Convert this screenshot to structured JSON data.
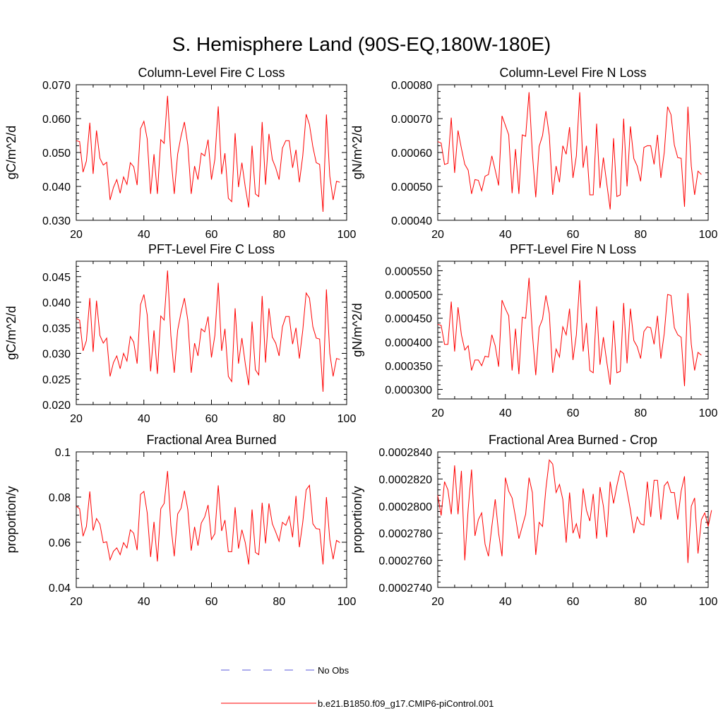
{
  "page_title": "S. Hemisphere Land (90S-EQ,180W-180E)",
  "colors": {
    "model_line": "#ff0000",
    "obs_line": "#5a5adb",
    "axis": "#000000"
  },
  "legend": [
    {
      "label": "No Obs",
      "style": "dashed",
      "color": "#5a5adb"
    },
    {
      "label": "b.e21.B1850.f09_g17.CMIP6-piControl.001",
      "style": "solid",
      "color": "#ff0000"
    }
  ],
  "chart_data": [
    {
      "type": "line",
      "title": "Column-Level Fire C Loss",
      "ylabel": "gC/m^2/d",
      "xlabel": "",
      "xlim": [
        20,
        100
      ],
      "xticks": [
        "20",
        "40",
        "60",
        "80",
        "100"
      ],
      "ylim": [
        0.03,
        0.07
      ],
      "yticks": [
        0.03,
        0.04,
        0.05,
        0.06,
        0.07
      ],
      "yticklabels": [
        "0.030",
        "0.040",
        "0.050",
        "0.060",
        "0.070"
      ],
      "series": [
        {
          "name": "b.e21.B1850.f09_g17.CMIP6-piControl.001",
          "x_start": 20,
          "values": [
            0.0535,
            0.0532,
            0.0442,
            0.0475,
            0.0588,
            0.0437,
            0.0565,
            0.0483,
            0.0463,
            0.0471,
            0.036,
            0.0397,
            0.042,
            0.038,
            0.0428,
            0.0406,
            0.047,
            0.0458,
            0.0404,
            0.057,
            0.0592,
            0.054,
            0.0378,
            0.0495,
            0.0378,
            0.0538,
            0.0527,
            0.0667,
            0.049,
            0.0378,
            0.0495,
            0.0548,
            0.059,
            0.0522,
            0.0378,
            0.046,
            0.042,
            0.0498,
            0.049,
            0.0538,
            0.042,
            0.048,
            0.0636,
            0.0436,
            0.0498,
            0.0365,
            0.0355,
            0.0557,
            0.0398,
            0.047,
            0.0398,
            0.0338,
            0.052,
            0.0378,
            0.037,
            0.059,
            0.0405,
            0.0555,
            0.048,
            0.0455,
            0.042,
            0.0513,
            0.0535,
            0.0535,
            0.0455,
            0.0508,
            0.0412,
            0.049,
            0.0613,
            0.0582,
            0.0517,
            0.047,
            0.0465,
            0.0325,
            0.0612,
            0.043,
            0.036,
            0.0415,
            0.0412
          ]
        }
      ]
    },
    {
      "type": "line",
      "title": "Column-Level Fire N Loss",
      "ylabel": "gN/m^2/d",
      "xlabel": "",
      "xlim": [
        20,
        100
      ],
      "xticks": [
        "20",
        "40",
        "60",
        "80",
        "100"
      ],
      "ylim": [
        0.0004,
        0.0008
      ],
      "yticks": [
        0.0004,
        0.0005,
        0.0006,
        0.0007,
        0.0008
      ],
      "yticklabels": [
        "0.00040",
        "0.00050",
        "0.00060",
        "0.00070",
        "0.00080"
      ],
      "series": [
        {
          "name": "b.e21.B1850.f09_g17.CMIP6-piControl.001",
          "x_start": 20,
          "values": [
            0.000632,
            0.000628,
            0.000565,
            0.000568,
            0.000703,
            0.00054,
            0.000665,
            0.000612,
            0.000565,
            0.000548,
            0.000478,
            0.00052,
            0.000518,
            0.000487,
            0.00053,
            0.000535,
            0.00059,
            0.000548,
            0.000503,
            0.000708,
            0.00068,
            0.000652,
            0.00048,
            0.00061,
            0.000478,
            0.000652,
            0.000648,
            0.000778,
            0.000598,
            0.000468,
            0.000618,
            0.00065,
            0.000722,
            0.00065,
            0.000475,
            0.00056,
            0.000512,
            0.00062,
            0.000595,
            0.000675,
            0.000525,
            0.00059,
            0.000778,
            0.000555,
            0.00062,
            0.000475,
            0.000475,
            0.000685,
            0.000495,
            0.000585,
            0.000508,
            0.000432,
            0.000642,
            0.00047,
            0.000475,
            0.0007,
            0.0005,
            0.000677,
            0.000582,
            0.00056,
            0.000515,
            0.000615,
            0.00062,
            0.00062,
            0.000565,
            0.000652,
            0.000525,
            0.0006,
            0.000735,
            0.000712,
            0.000622,
            0.000585,
            0.000583,
            0.00044,
            0.000735,
            0.00056,
            0.000475,
            0.000545,
            0.000535
          ]
        }
      ]
    },
    {
      "type": "line",
      "title": "PFT-Level Fire C Loss",
      "ylabel": "gC/m^2/d",
      "xlabel": "",
      "xlim": [
        20,
        100
      ],
      "xticks": [
        "20",
        "40",
        "60",
        "80",
        "100"
      ],
      "ylim": [
        0.02,
        0.048
      ],
      "yticks": [
        0.02,
        0.025,
        0.03,
        0.035,
        0.04,
        0.045
      ],
      "yticklabels": [
        "0.020",
        "0.025",
        "0.030",
        "0.035",
        "0.040",
        "0.045"
      ],
      "series": [
        {
          "name": "b.e21.B1850.f09_g17.CMIP6-piControl.001",
          "x_start": 20,
          "values": [
            0.0368,
            0.0365,
            0.0305,
            0.0325,
            0.0408,
            0.0303,
            0.0403,
            0.0335,
            0.032,
            0.033,
            0.0255,
            0.0282,
            0.0295,
            0.027,
            0.03,
            0.0285,
            0.0333,
            0.0322,
            0.028,
            0.0395,
            0.0415,
            0.0375,
            0.0265,
            0.0345,
            0.026,
            0.0373,
            0.0365,
            0.0462,
            0.0335,
            0.0262,
            0.0345,
            0.038,
            0.0408,
            0.0365,
            0.0262,
            0.032,
            0.0295,
            0.0348,
            0.0342,
            0.0372,
            0.0292,
            0.0335,
            0.0438,
            0.0305,
            0.0348,
            0.0255,
            0.0245,
            0.0388,
            0.028,
            0.033,
            0.028,
            0.0238,
            0.0362,
            0.0268,
            0.0258,
            0.0412,
            0.0282,
            0.0388,
            0.0332,
            0.032,
            0.0295,
            0.0352,
            0.0372,
            0.0372,
            0.0318,
            0.035,
            0.029,
            0.0345,
            0.0418,
            0.0408,
            0.0352,
            0.033,
            0.0328,
            0.0225,
            0.0425,
            0.03,
            0.0255,
            0.029,
            0.0288
          ]
        }
      ]
    },
    {
      "type": "line",
      "title": "PFT-Level Fire N Loss",
      "ylabel": "gN/m^2/d",
      "xlabel": "",
      "xlim": [
        20,
        100
      ],
      "xticks": [
        "20",
        "40",
        "60",
        "80",
        "100"
      ],
      "ylim": [
        0.00028,
        0.00057
      ],
      "yticks": [
        0.0003,
        0.00035,
        0.0004,
        0.00045,
        0.0005,
        0.00055
      ],
      "yticklabels": [
        "0.000300",
        "0.000350",
        "0.000400",
        "0.000450",
        "0.000500",
        "0.000550"
      ],
      "series": [
        {
          "name": "b.e21.B1850.f09_g17.CMIP6-piControl.001",
          "x_start": 20,
          "values": [
            0.000437,
            0.000435,
            0.000395,
            0.000395,
            0.000485,
            0.00038,
            0.000473,
            0.000415,
            0.000383,
            0.000392,
            0.00034,
            0.000362,
            0.000362,
            0.00035,
            0.00037,
            0.000368,
            0.000415,
            0.000392,
            0.000348,
            0.000488,
            0.00047,
            0.000455,
            0.00034,
            0.000428,
            0.000332,
            0.000452,
            0.00045,
            0.000535,
            0.000418,
            0.00033,
            0.00043,
            0.000448,
            0.000498,
            0.00046,
            0.000335,
            0.000385,
            0.000368,
            0.000432,
            0.000415,
            0.00047,
            0.000362,
            0.000415,
            0.00053,
            0.00038,
            0.00044,
            0.00034,
            0.000335,
            0.000475,
            0.000352,
            0.00041,
            0.000358,
            0.00031,
            0.000445,
            0.000335,
            0.000338,
            0.000482,
            0.000355,
            0.00047,
            0.000403,
            0.00039,
            0.000365,
            0.000422,
            0.000432,
            0.00043,
            0.000395,
            0.000455,
            0.000365,
            0.000418,
            0.0005,
            0.000498,
            0.00043,
            0.000415,
            0.00041,
            0.000307,
            0.000503,
            0.000395,
            0.00034,
            0.000378,
            0.000372
          ]
        }
      ]
    },
    {
      "type": "line",
      "title": "Fractional Area Burned",
      "ylabel": "proportion/y",
      "xlabel": "",
      "xlim": [
        20,
        100
      ],
      "xticks": [
        "20",
        "40",
        "60",
        "80",
        "100"
      ],
      "ylim": [
        0.04,
        0.1
      ],
      "yticks": [
        0.04,
        0.06,
        0.08,
        0.1
      ],
      "yticklabels": [
        "0.04",
        "0.06",
        "0.08",
        "0.1"
      ],
      "series": [
        {
          "name": "b.e21.B1850.f09_g17.CMIP6-piControl.001",
          "x_start": 20,
          "values": [
            0.076,
            0.0748,
            0.0627,
            0.067,
            0.0825,
            0.0652,
            0.0705,
            0.068,
            0.0598,
            0.0602,
            0.0522,
            0.056,
            0.0575,
            0.0545,
            0.0598,
            0.0575,
            0.0655,
            0.064,
            0.0565,
            0.0812,
            0.0825,
            0.073,
            0.0535,
            0.069,
            0.0515,
            0.0748,
            0.0772,
            0.0915,
            0.0675,
            0.0538,
            0.0725,
            0.075,
            0.0828,
            0.0745,
            0.0563,
            0.0668,
            0.0585,
            0.0685,
            0.0712,
            0.0765,
            0.0612,
            0.0638,
            0.0852,
            0.065,
            0.0698,
            0.0558,
            0.0558,
            0.0755,
            0.0572,
            0.0655,
            0.0598,
            0.0502,
            0.0745,
            0.0555,
            0.0545,
            0.0775,
            0.0595,
            0.0772,
            0.0682,
            0.0645,
            0.0605,
            0.0688,
            0.0675,
            0.0715,
            0.0622,
            0.0805,
            0.0578,
            0.0688,
            0.0832,
            0.0852,
            0.0682,
            0.066,
            0.0658,
            0.0502,
            0.08,
            0.0612,
            0.0525,
            0.0608,
            0.0598
          ]
        }
      ]
    },
    {
      "type": "line",
      "title": "Fractional Area Burned - Crop",
      "ylabel": "proportion/y",
      "xlabel": "",
      "xlim": [
        20,
        100
      ],
      "xticks": [
        "20",
        "40",
        "60",
        "80",
        "100"
      ],
      "ylim": [
        0.000274,
        0.000284
      ],
      "yticks": [
        0.000274,
        0.000276,
        0.000278,
        0.00028,
        0.000282,
        0.000284
      ],
      "yticklabels": [
        "0.0002740",
        "0.0002760",
        "0.0002780",
        "0.0002800",
        "0.0002820",
        "0.0002840"
      ],
      "series": [
        {
          "name": "b.e21.B1850.f09_g17.CMIP6-piControl.001",
          "x_start": 20,
          "values": [
            0.0002808,
            0.0002793,
            0.0002818,
            0.0002812,
            0.0002794,
            0.000283,
            0.0002794,
            0.0002826,
            0.000276,
            0.0002798,
            0.0002827,
            0.0002778,
            0.000279,
            0.0002795,
            0.0002772,
            0.0002763,
            0.0002785,
            0.0002805,
            0.000278,
            0.0002763,
            0.0002821,
            0.0002811,
            0.0002806,
            0.0002792,
            0.0002776,
            0.0002785,
            0.0002794,
            0.0002821,
            0.000281,
            0.0002764,
            0.0002788,
            0.0002785,
            0.0002813,
            0.0002834,
            0.0002831,
            0.000281,
            0.0002816,
            0.0002805,
            0.0002773,
            0.000281,
            0.000278,
            0.0002787,
            0.0002776,
            0.0002813,
            0.0002797,
            0.0002789,
            0.0002809,
            0.0002776,
            0.0002814,
            0.00028,
            0.0002777,
            0.0002818,
            0.0002802,
            0.0002815,
            0.0002826,
            0.0002824,
            0.0002811,
            0.0002797,
            0.000278,
            0.0002792,
            0.0002787,
            0.0002786,
            0.0002818,
            0.0002792,
            0.0002819,
            0.0002819,
            0.000279,
            0.0002815,
            0.0002818,
            0.000281,
            0.000281,
            0.000279,
            0.0002811,
            0.0002822,
            0.0002758,
            0.00028,
            0.0002806,
            0.0002765,
            0.000279,
            0.0002795,
            0.0002785,
            0.0002797
          ]
        }
      ]
    }
  ]
}
